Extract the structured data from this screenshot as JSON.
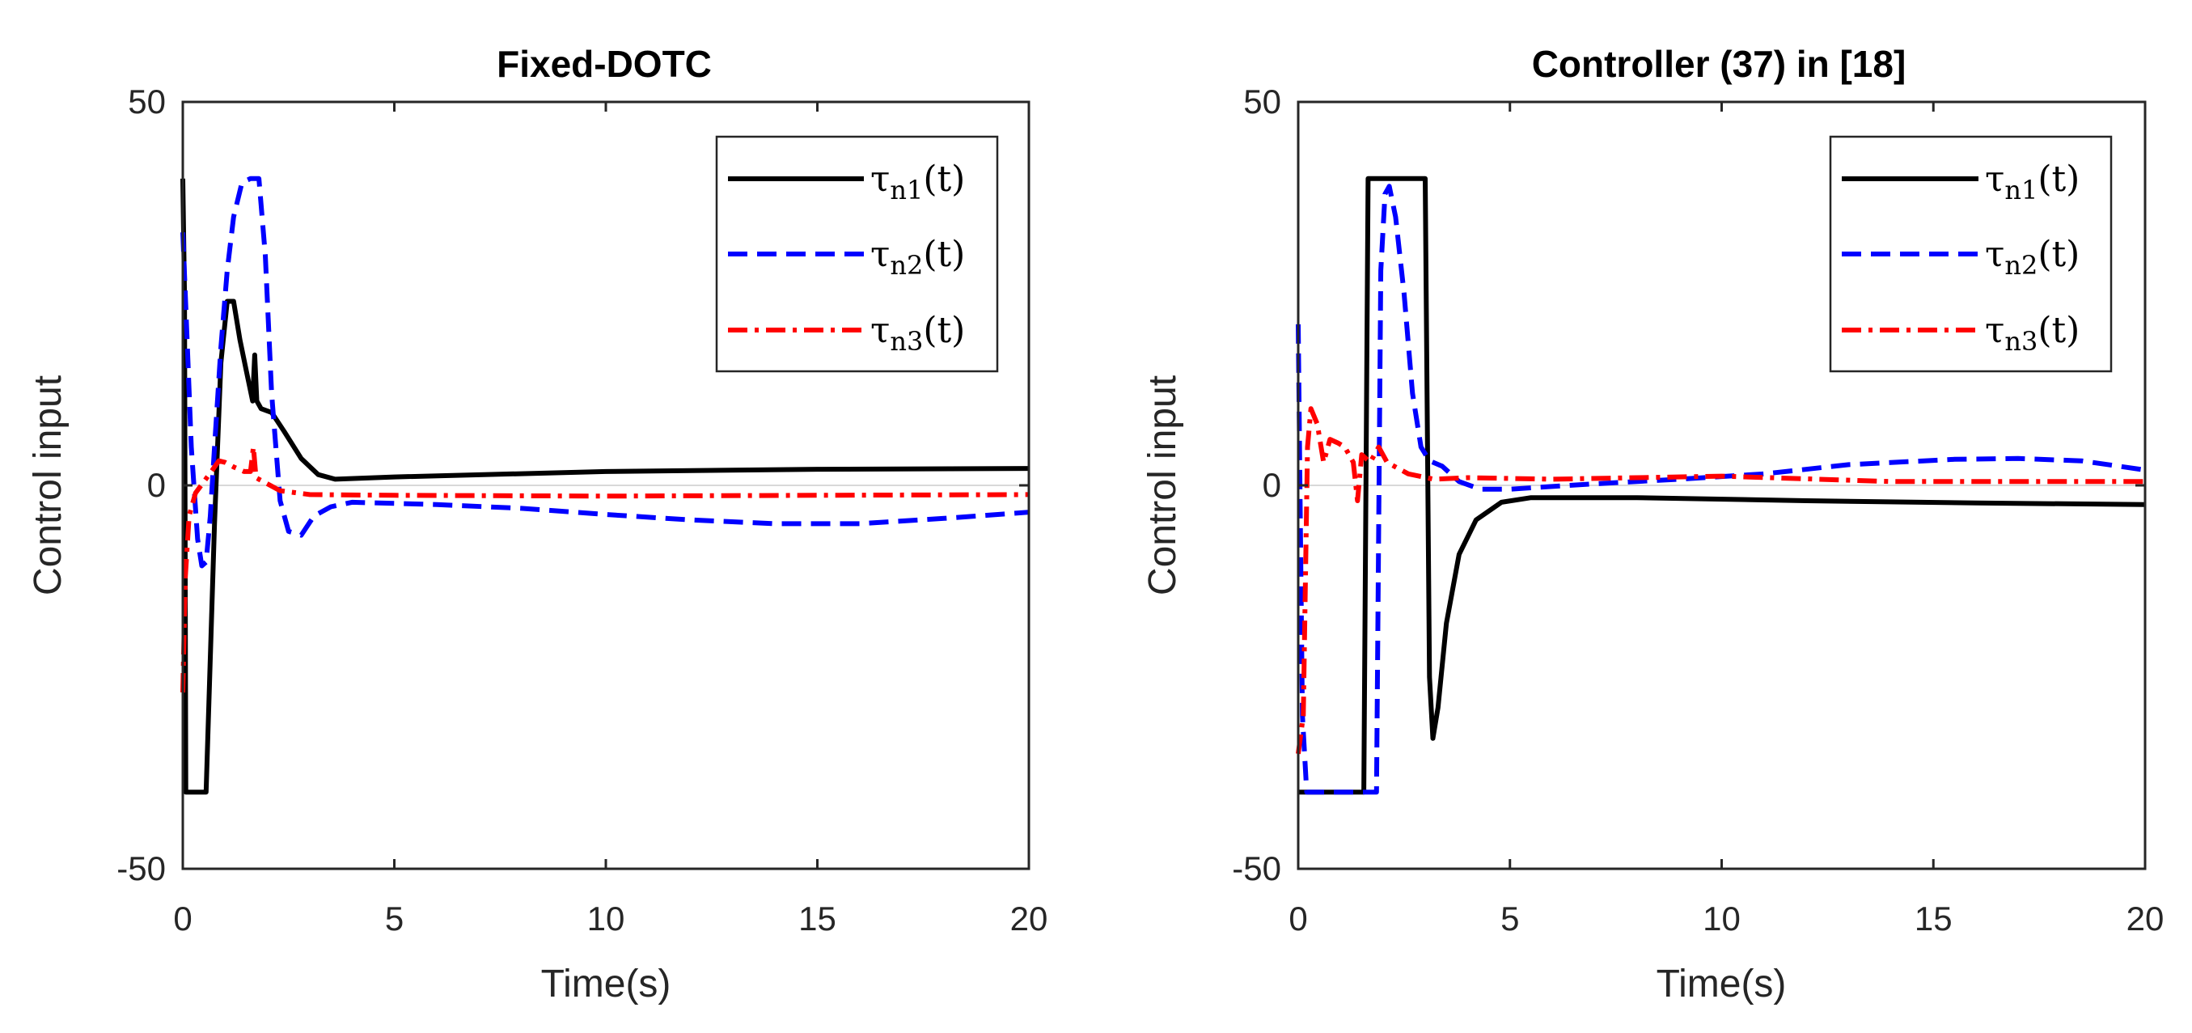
{
  "chart_data": [
    {
      "type": "line",
      "title": "Fixed-DOTC",
      "xlabel": "Time(s)",
      "ylabel": "Control input",
      "xlim": [
        0,
        20
      ],
      "ylim": [
        -50,
        50
      ],
      "xticks": [
        "0",
        "5",
        "10",
        "15",
        "20"
      ],
      "yticks": [
        "-50",
        "0",
        "50"
      ],
      "legend_position": "top-right",
      "series": [
        {
          "name": "τn1(t)",
          "legend": {
            "symbol": "τ",
            "sub": "n1",
            "suffix": "(t)"
          },
          "color": "#000000",
          "style": "solid",
          "points": [
            [
              0,
              40
            ],
            [
              0.04,
              25
            ],
            [
              0.07,
              -40
            ],
            [
              0.55,
              -40
            ],
            [
              0.75,
              -5
            ],
            [
              0.9,
              16
            ],
            [
              1.05,
              24
            ],
            [
              1.2,
              24
            ],
            [
              1.35,
              19
            ],
            [
              1.5,
              15
            ],
            [
              1.65,
              11
            ],
            [
              1.7,
              17
            ],
            [
              1.75,
              11
            ],
            [
              1.85,
              10
            ],
            [
              2.1,
              9.5
            ],
            [
              2.4,
              7
            ],
            [
              2.8,
              3.5
            ],
            [
              3.2,
              1.4
            ],
            [
              3.6,
              0.8
            ],
            [
              5,
              1.1
            ],
            [
              10,
              1.8
            ],
            [
              15,
              2.1
            ],
            [
              20,
              2.2
            ]
          ]
        },
        {
          "name": "τn2(t)",
          "legend": {
            "symbol": "τ",
            "sub": "n2",
            "suffix": "(t)"
          },
          "color": "#0000ff",
          "style": "dashed",
          "points": [
            [
              0,
              33
            ],
            [
              0.08,
              22
            ],
            [
              0.2,
              5
            ],
            [
              0.35,
              -7
            ],
            [
              0.45,
              -10.5
            ],
            [
              0.55,
              -10
            ],
            [
              0.65,
              -4
            ],
            [
              0.75,
              5
            ],
            [
              0.9,
              18
            ],
            [
              1.05,
              28
            ],
            [
              1.2,
              35
            ],
            [
              1.4,
              39.5
            ],
            [
              1.6,
              40
            ],
            [
              1.8,
              40
            ],
            [
              1.95,
              30
            ],
            [
              2.1,
              12
            ],
            [
              2.3,
              -2
            ],
            [
              2.5,
              -6
            ],
            [
              2.8,
              -6.5
            ],
            [
              3.1,
              -4
            ],
            [
              3.5,
              -2.8
            ],
            [
              4,
              -2.2
            ],
            [
              6,
              -2.5
            ],
            [
              8,
              -3
            ],
            [
              10,
              -3.8
            ],
            [
              12,
              -4.5
            ],
            [
              14,
              -5
            ],
            [
              16,
              -5
            ],
            [
              18,
              -4.3
            ],
            [
              20,
              -3.5
            ]
          ]
        },
        {
          "name": "τn3(t)",
          "legend": {
            "symbol": "τ",
            "sub": "n3",
            "suffix": "(t)"
          },
          "color": "#ff0000",
          "style": "dashdot",
          "points": [
            [
              0,
              -27
            ],
            [
              0.06,
              -12
            ],
            [
              0.15,
              -4
            ],
            [
              0.3,
              -1
            ],
            [
              0.5,
              0.5
            ],
            [
              0.7,
              2
            ],
            [
              0.85,
              3.2
            ],
            [
              1.0,
              3
            ],
            [
              1.2,
              2.4
            ],
            [
              1.45,
              1.8
            ],
            [
              1.6,
              1.8
            ],
            [
              1.67,
              5
            ],
            [
              1.73,
              1
            ],
            [
              1.9,
              0.5
            ],
            [
              2.3,
              -0.7
            ],
            [
              3,
              -1.2
            ],
            [
              5,
              -1.3
            ],
            [
              10,
              -1.4
            ],
            [
              15,
              -1.3
            ],
            [
              20,
              -1.2
            ]
          ]
        }
      ]
    },
    {
      "type": "line",
      "title": "Controller (37) in [18]",
      "xlabel": "Time(s)",
      "ylabel": "Control input",
      "xlim": [
        0,
        20
      ],
      "ylim": [
        -50,
        50
      ],
      "xticks": [
        "0",
        "5",
        "10",
        "15",
        "20"
      ],
      "yticks": [
        "-50",
        "0",
        "50"
      ],
      "legend_position": "top-right",
      "series": [
        {
          "name": "τn1(t)",
          "legend": {
            "symbol": "τ",
            "sub": "n1",
            "suffix": "(t)"
          },
          "color": "#000000",
          "style": "solid",
          "points": [
            [
              0,
              -40
            ],
            [
              1.55,
              -40
            ],
            [
              1.65,
              40
            ],
            [
              2.95,
              40
            ],
            [
              3.0,
              40
            ],
            [
              3.1,
              -25
            ],
            [
              3.18,
              -33
            ],
            [
              3.3,
              -29
            ],
            [
              3.5,
              -18
            ],
            [
              3.8,
              -9
            ],
            [
              4.2,
              -4.5
            ],
            [
              4.8,
              -2.2
            ],
            [
              5.5,
              -1.6
            ],
            [
              8,
              -1.6
            ],
            [
              12,
              -2
            ],
            [
              16,
              -2.3
            ],
            [
              20,
              -2.5
            ]
          ]
        },
        {
          "name": "τn2(t)",
          "legend": {
            "symbol": "τ",
            "sub": "n2",
            "suffix": "(t)"
          },
          "color": "#0000ff",
          "style": "dashed",
          "points": [
            [
              0,
              21
            ],
            [
              0.1,
              -30
            ],
            [
              0.2,
              -40
            ],
            [
              1.85,
              -40
            ],
            [
              1.95,
              28
            ],
            [
              2.05,
              38
            ],
            [
              2.15,
              39
            ],
            [
              2.3,
              35
            ],
            [
              2.5,
              25
            ],
            [
              2.7,
              12
            ],
            [
              2.9,
              5
            ],
            [
              3.1,
              3.2
            ],
            [
              3.4,
              2.5
            ],
            [
              3.8,
              0.5
            ],
            [
              4.3,
              -0.5
            ],
            [
              5,
              -0.5
            ],
            [
              7,
              0.2
            ],
            [
              9,
              0.8
            ],
            [
              11,
              1.5
            ],
            [
              13,
              2.7
            ],
            [
              15.5,
              3.4
            ],
            [
              17,
              3.5
            ],
            [
              18.5,
              3.2
            ],
            [
              20,
              2
            ]
          ]
        },
        {
          "name": "τn3(t)",
          "legend": {
            "symbol": "τ",
            "sub": "n3",
            "suffix": "(t)"
          },
          "color": "#ff0000",
          "style": "dashdot",
          "points": [
            [
              0,
              -35
            ],
            [
              0.12,
              -30
            ],
            [
              0.22,
              5
            ],
            [
              0.3,
              10
            ],
            [
              0.45,
              8
            ],
            [
              0.6,
              3
            ],
            [
              0.75,
              6
            ],
            [
              0.95,
              5.5
            ],
            [
              1.1,
              5
            ],
            [
              1.3,
              3
            ],
            [
              1.4,
              -2
            ],
            [
              1.5,
              4
            ],
            [
              1.7,
              3
            ],
            [
              1.9,
              5
            ],
            [
              2.1,
              3
            ],
            [
              2.6,
              1.5
            ],
            [
              3.2,
              0.8
            ],
            [
              4,
              1
            ],
            [
              6,
              0.8
            ],
            [
              10,
              1.2
            ],
            [
              14,
              0.5
            ],
            [
              20,
              0.5
            ]
          ]
        }
      ]
    }
  ]
}
